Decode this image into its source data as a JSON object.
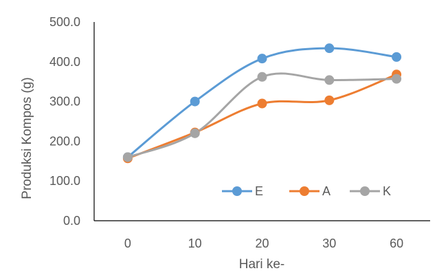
{
  "chart_data": {
    "type": "line",
    "categories": [
      "0",
      "10",
      "20",
      "30",
      "60"
    ],
    "series": [
      {
        "name": "E",
        "values": [
          160,
          300,
          408,
          434,
          412
        ],
        "color": "#5B9BD5"
      },
      {
        "name": "A",
        "values": [
          157,
          222,
          295,
          303,
          368
        ],
        "color": "#ED7D31"
      },
      {
        "name": "K",
        "values": [
          160,
          220,
          362,
          354,
          357
        ],
        "color": "#A5A5A5"
      }
    ],
    "xlabel": "Hari ke-",
    "ylabel": "Produksi Kompos (g)",
    "ylim": [
      0,
      500
    ],
    "yticks": [
      "0.0",
      "100.0",
      "200.0",
      "300.0",
      "400.0",
      "500.0"
    ],
    "smooth": true,
    "grid": false,
    "legend": "bottom-right inside plot"
  }
}
